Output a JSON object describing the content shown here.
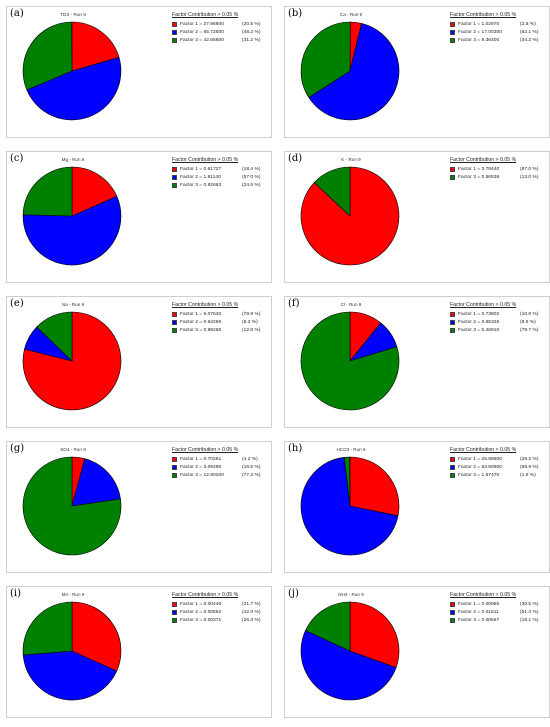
{
  "legend_title": "Factor Contribution > 0.05 %",
  "colors": {
    "factor_1": "#ff0000",
    "factor_2": "#0000ff",
    "factor_3": "#008000"
  },
  "chart_data": [
    {
      "type": "pie",
      "panel": "(a)",
      "title": "TDS - Run 9",
      "slices": [
        {
          "factor": 1,
          "label": "Factor 1 = 27.96600",
          "pct_text": "(20.5 %)",
          "percent": 20.5
        },
        {
          "factor": 2,
          "label": "Factor 2 = 65.72500",
          "pct_text": "(48.2 %)",
          "percent": 48.2
        },
        {
          "factor": 3,
          "label": "Factor 3 = 42.55600",
          "pct_text": "(31.2 %)",
          "percent": 31.2
        }
      ]
    },
    {
      "type": "pie",
      "panel": "(b)",
      "title": "Ca - Run 9",
      "slices": [
        {
          "factor": 1,
          "label": "Factor 1 = 1.02970",
          "pct_text": "(3.8 %)",
          "percent": 3.8
        },
        {
          "factor": 2,
          "label": "Factor 2 = 17.00300",
          "pct_text": "(62.1 %)",
          "percent": 62.1
        },
        {
          "factor": 3,
          "label": "Factor 3 = 9.36400",
          "pct_text": "(34.2 %)",
          "percent": 34.2
        }
      ]
    },
    {
      "type": "pie",
      "panel": "(c)",
      "title": "Mg - Run 9",
      "slices": [
        {
          "factor": 1,
          "label": "Factor 1 = 0.61727",
          "pct_text": "(18.4 %)",
          "percent": 18.4
        },
        {
          "factor": 2,
          "label": "Factor 2 = 1.91140",
          "pct_text": "(57.0 %)",
          "percent": 57.0
        },
        {
          "factor": 3,
          "label": "Factor 3 = 0.82663",
          "pct_text": "(24.6 %)",
          "percent": 24.6
        }
      ]
    },
    {
      "type": "pie",
      "panel": "(d)",
      "title": "K - Run 9",
      "slices": [
        {
          "factor": 1,
          "label": "Factor 1 = 3.78440",
          "pct_text": "(87.0 %)",
          "percent": 87.0
        },
        {
          "factor": 3,
          "label": "Factor 3 = 0.56538",
          "pct_text": "(13.0 %)",
          "percent": 13.0
        }
      ]
    },
    {
      "type": "pie",
      "panel": "(e)",
      "title": "Na - Run 9",
      "slices": [
        {
          "factor": 1,
          "label": "Factor 1 = 6.07540",
          "pct_text": "(78.9 %)",
          "percent": 78.9
        },
        {
          "factor": 2,
          "label": "Factor 2 = 0.64296",
          "pct_text": "(8.3 %)",
          "percent": 8.3
        },
        {
          "factor": 3,
          "label": "Factor 3 = 0.98260",
          "pct_text": "(12.8 %)",
          "percent": 12.8
        }
      ]
    },
    {
      "type": "pie",
      "panel": "(f)",
      "title": "Cl - Run 9",
      "slices": [
        {
          "factor": 1,
          "label": "Factor 1 = 0.73802",
          "pct_text": "(10.8 %)",
          "percent": 10.8
        },
        {
          "factor": 2,
          "label": "Factor 2 = 0.65326",
          "pct_text": "(9.5 %)",
          "percent": 9.5
        },
        {
          "factor": 3,
          "label": "Factor 3 = 5.46910",
          "pct_text": "(79.7 %)",
          "percent": 79.7
        }
      ]
    },
    {
      "type": "pie",
      "panel": "(g)",
      "title": "SO4 - Run 9",
      "slices": [
        {
          "factor": 1,
          "label": "Factor 1 = 0.70261",
          "pct_text": "(4.2 %)",
          "percent": 4.2
        },
        {
          "factor": 2,
          "label": "Factor 2 = 3.09490",
          "pct_text": "(18.5 %)",
          "percent": 18.5
        },
        {
          "factor": 3,
          "label": "Factor 3 = 12.90200",
          "pct_text": "(77.3 %)",
          "percent": 77.3
        }
      ]
    },
    {
      "type": "pie",
      "panel": "(h)",
      "title": "HCO3 - Run 9",
      "slices": [
        {
          "factor": 1,
          "label": "Factor 1 = 25.68600",
          "pct_text": "(28.2 %)",
          "percent": 28.2
        },
        {
          "factor": 2,
          "label": "Factor 2 = 63.60900",
          "pct_text": "(69.9 %)",
          "percent": 69.9
        },
        {
          "factor": 3,
          "label": "Factor 3 = 1.67470",
          "pct_text": "(1.8 %)",
          "percent": 1.8
        }
      ]
    },
    {
      "type": "pie",
      "panel": "(i)",
      "title": "Mn - Run 9",
      "slices": [
        {
          "factor": 1,
          "label": "Factor 1 = 0.00446",
          "pct_text": "(31.7 %)",
          "percent": 31.7
        },
        {
          "factor": 2,
          "label": "Factor 2 = 0.00592",
          "pct_text": "(42.0 %)",
          "percent": 42.0
        },
        {
          "factor": 3,
          "label": "Factor 3 = 0.00371",
          "pct_text": "(26.3 %)",
          "percent": 26.3
        }
      ]
    },
    {
      "type": "pie",
      "panel": "(j)",
      "title": "NH4 - Run 9",
      "slices": [
        {
          "factor": 1,
          "label": "Factor 1 = 0.00955",
          "pct_text": "(30.5 %)",
          "percent": 30.5
        },
        {
          "factor": 2,
          "label": "Factor 2 = 0.01611",
          "pct_text": "(51.4 %)",
          "percent": 51.4
        },
        {
          "factor": 3,
          "label": "Factor 3 = 0.00567",
          "pct_text": "(18.1 %)",
          "percent": 18.1
        }
      ]
    }
  ]
}
